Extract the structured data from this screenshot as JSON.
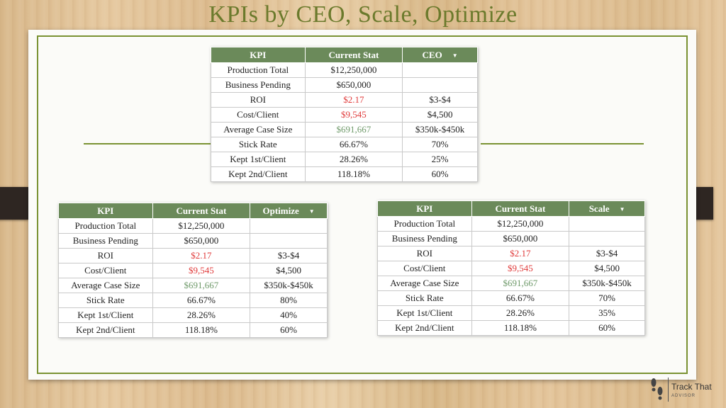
{
  "title": "KPIs by CEO, Scale, Optimize",
  "colors": {
    "header_green": "#6b8a5a",
    "title_olive": "#6b7a2c",
    "frame_green": "#7a9232",
    "negative_red": "#e03a3a",
    "positive_green": "#6f9a6a"
  },
  "logo": {
    "brand": "Track That",
    "tagline": "ADVISOR",
    "icon": "footprints-icon"
  },
  "headers": {
    "kpi": "KPI",
    "current": "Current Stat"
  },
  "tables": {
    "ceo": {
      "target_label": "CEO",
      "rows": [
        {
          "kpi": "Production Total",
          "current": "$12,250,000",
          "target": ""
        },
        {
          "kpi": "Business Pending",
          "current": "$650,000",
          "target": ""
        },
        {
          "kpi": "ROI",
          "current": "$2.17",
          "target": "$3-$4"
        },
        {
          "kpi": "Cost/Client",
          "current": "$9,545",
          "target": "$4,500"
        },
        {
          "kpi": "Average Case Size",
          "current": "$691,667",
          "target": "$350k-$450k"
        },
        {
          "kpi": "Stick Rate",
          "current": "66.67%",
          "target": "70%"
        },
        {
          "kpi": "Kept 1st/Client",
          "current": "28.26%",
          "target": "25%"
        },
        {
          "kpi": "Kept 2nd/Client",
          "current": "118.18%",
          "target": "60%"
        }
      ]
    },
    "optimize": {
      "target_label": "Optimize",
      "rows": [
        {
          "kpi": "Production Total",
          "current": "$12,250,000",
          "target": ""
        },
        {
          "kpi": "Business Pending",
          "current": "$650,000",
          "target": ""
        },
        {
          "kpi": "ROI",
          "current": "$2.17",
          "target": "$3-$4"
        },
        {
          "kpi": "Cost/Client",
          "current": "$9,545",
          "target": "$4,500"
        },
        {
          "kpi": "Average Case Size",
          "current": "$691,667",
          "target": "$350k-$450k"
        },
        {
          "kpi": "Stick Rate",
          "current": "66.67%",
          "target": "80%"
        },
        {
          "kpi": "Kept 1st/Client",
          "current": "28.26%",
          "target": "40%"
        },
        {
          "kpi": "Kept 2nd/Client",
          "current": "118.18%",
          "target": "60%"
        }
      ]
    },
    "scale": {
      "target_label": "Scale",
      "rows": [
        {
          "kpi": "Production Total",
          "current": "$12,250,000",
          "target": ""
        },
        {
          "kpi": "Business Pending",
          "current": "$650,000",
          "target": ""
        },
        {
          "kpi": "ROI",
          "current": "$2.17",
          "target": "$3-$4"
        },
        {
          "kpi": "Cost/Client",
          "current": "$9,545",
          "target": "$4,500"
        },
        {
          "kpi": "Average Case Size",
          "current": "$691,667",
          "target": "$350k-$450k"
        },
        {
          "kpi": "Stick Rate",
          "current": "66.67%",
          "target": "70%"
        },
        {
          "kpi": "Kept 1st/Client",
          "current": "28.26%",
          "target": "35%"
        },
        {
          "kpi": "Kept 2nd/Client",
          "current": "118.18%",
          "target": "60%"
        }
      ]
    }
  }
}
